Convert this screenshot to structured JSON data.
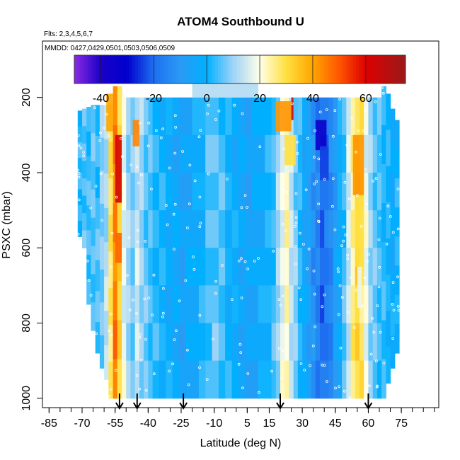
{
  "chart_data": {
    "type": "heatmap",
    "title": "ATOM4 Southbound U",
    "flights_note": "Flts: 2,3,4,5,6,7",
    "dates_note": "MMDD: 0427,0429,0501,0503,0506,0509",
    "xlabel": "Latitude (deg N)",
    "ylabel": "PSXC (mbar)",
    "xlim": [
      -88,
      92
    ],
    "ylim": [
      1025,
      50
    ],
    "x_ticks": [
      "-85",
      "-70",
      "-55",
      "-40",
      "-25",
      "-10",
      "5",
      "15",
      "30",
      "45",
      "60",
      "75"
    ],
    "x_tick_values": [
      -85,
      -70,
      -55,
      -40,
      -25,
      -10,
      5,
      15,
      30,
      45,
      60,
      75
    ],
    "y_ticks": [
      "200",
      "400",
      "600",
      "800",
      "1000"
    ],
    "y_tick_values": [
      200,
      400,
      600,
      800,
      1000
    ],
    "colorbar": {
      "range": [
        -50,
        75
      ],
      "ticks": [
        "-40",
        "-20",
        "0",
        "20",
        "40",
        "60"
      ],
      "tick_values": [
        -40,
        -20,
        0,
        20,
        40,
        60
      ],
      "stops": [
        {
          "v": -50,
          "color": "#8a2be2"
        },
        {
          "v": -40,
          "color": "#1a00c8"
        },
        {
          "v": -30,
          "color": "#0000cd"
        },
        {
          "v": -20,
          "color": "#1e6ff0"
        },
        {
          "v": -10,
          "color": "#2a9af5"
        },
        {
          "v": 0,
          "color": "#00b0ff"
        },
        {
          "v": 10,
          "color": "#9fd3f7"
        },
        {
          "v": 20,
          "color": "#ffffe8"
        },
        {
          "v": 30,
          "color": "#ffe040"
        },
        {
          "v": 40,
          "color": "#ffa500"
        },
        {
          "v": 50,
          "color": "#ff5500"
        },
        {
          "v": 60,
          "color": "#dd0000"
        },
        {
          "v": 75,
          "color": "#9a1a1a"
        }
      ]
    },
    "profile_arrows_lat": [
      -53,
      -45,
      -24,
      20,
      60
    ],
    "latitude_columns": [
      {
        "lat": -72,
        "top": 235,
        "bottom": 570,
        "u": 2
      },
      {
        "lat": -70,
        "top": 230,
        "bottom": 600,
        "u": 5
      },
      {
        "lat": -68,
        "top": 225,
        "bottom": 750,
        "u": 3
      },
      {
        "lat": -66,
        "top": 220,
        "bottom": 820,
        "u": 6
      },
      {
        "lat": -64,
        "top": 220,
        "bottom": 880,
        "u": 4
      },
      {
        "lat": -62,
        "top": 220,
        "bottom": 920,
        "u": 8
      },
      {
        "lat": -60,
        "top": 220,
        "bottom": 950,
        "u": 12
      },
      {
        "lat": -58,
        "top": 220,
        "bottom": 1000,
        "u": 28
      },
      {
        "lat": -56,
        "top": 170,
        "bottom": 1000,
        "u": 45
      },
      {
        "lat": -54,
        "top": 170,
        "bottom": 1000,
        "u": 32
      },
      {
        "lat": -52,
        "top": 200,
        "bottom": 1000,
        "u": 18
      },
      {
        "lat": -50,
        "top": 200,
        "bottom": 1000,
        "u": 10
      },
      {
        "lat": -48,
        "top": 200,
        "bottom": 1000,
        "u": 8
      },
      {
        "lat": -46,
        "top": 200,
        "bottom": 1000,
        "u": 14
      },
      {
        "lat": -44,
        "top": 200,
        "bottom": 1000,
        "u": 10
      },
      {
        "lat": -42,
        "top": 200,
        "bottom": 1000,
        "u": 6
      },
      {
        "lat": -40,
        "top": 200,
        "bottom": 1000,
        "u": 4
      },
      {
        "lat": -38,
        "top": 200,
        "bottom": 1000,
        "u": 2
      },
      {
        "lat": -35,
        "top": 200,
        "bottom": 1000,
        "u": 0
      },
      {
        "lat": -32,
        "top": 200,
        "bottom": 1000,
        "u": -2
      },
      {
        "lat": -29,
        "top": 200,
        "bottom": 1000,
        "u": -4
      },
      {
        "lat": -26,
        "top": 200,
        "bottom": 1000,
        "u": -6
      },
      {
        "lat": -23,
        "top": 200,
        "bottom": 1000,
        "u": -4
      },
      {
        "lat": -20,
        "top": 200,
        "bottom": 1000,
        "u": -2
      },
      {
        "lat": -17,
        "top": 200,
        "bottom": 1000,
        "u": 0
      },
      {
        "lat": -14,
        "top": 200,
        "bottom": 1000,
        "u": 4
      },
      {
        "lat": -11,
        "top": 200,
        "bottom": 1000,
        "u": 6
      },
      {
        "lat": -8,
        "top": 200,
        "bottom": 1000,
        "u": 4
      },
      {
        "lat": -5,
        "top": 200,
        "bottom": 1000,
        "u": 0
      },
      {
        "lat": -2,
        "top": 200,
        "bottom": 1000,
        "u": -2
      },
      {
        "lat": 1,
        "top": 200,
        "bottom": 1000,
        "u": -4
      },
      {
        "lat": 4,
        "top": 200,
        "bottom": 1000,
        "u": -6
      },
      {
        "lat": 7,
        "top": 200,
        "bottom": 1000,
        "u": -4
      },
      {
        "lat": 10,
        "top": 200,
        "bottom": 1000,
        "u": -2
      },
      {
        "lat": 13,
        "top": 200,
        "bottom": 1000,
        "u": 0
      },
      {
        "lat": 16,
        "top": 200,
        "bottom": 1000,
        "u": 4
      },
      {
        "lat": 18,
        "top": 200,
        "bottom": 1000,
        "u": 10
      },
      {
        "lat": 20,
        "top": 200,
        "bottom": 1000,
        "u": 18
      },
      {
        "lat": 22,
        "top": 200,
        "bottom": 1000,
        "u": 22
      },
      {
        "lat": 24,
        "top": 200,
        "bottom": 1000,
        "u": 14
      },
      {
        "lat": 26,
        "top": 200,
        "bottom": 1000,
        "u": 8
      },
      {
        "lat": 28,
        "top": 200,
        "bottom": 1000,
        "u": 2
      },
      {
        "lat": 30,
        "top": 200,
        "bottom": 1000,
        "u": -4
      },
      {
        "lat": 32,
        "top": 200,
        "bottom": 1000,
        "u": -8
      },
      {
        "lat": 34,
        "top": 200,
        "bottom": 1000,
        "u": -12
      },
      {
        "lat": 36,
        "top": 200,
        "bottom": 1000,
        "u": -16
      },
      {
        "lat": 38,
        "top": 200,
        "bottom": 1000,
        "u": -20
      },
      {
        "lat": 40,
        "top": 200,
        "bottom": 1000,
        "u": -18
      },
      {
        "lat": 42,
        "top": 200,
        "bottom": 1000,
        "u": -14
      },
      {
        "lat": 44,
        "top": 200,
        "bottom": 1000,
        "u": -8
      },
      {
        "lat": 46,
        "top": 200,
        "bottom": 1000,
        "u": -2
      },
      {
        "lat": 48,
        "top": 200,
        "bottom": 1000,
        "u": 4
      },
      {
        "lat": 50,
        "top": 200,
        "bottom": 1000,
        "u": 14
      },
      {
        "lat": 52,
        "top": 200,
        "bottom": 1000,
        "u": 26
      },
      {
        "lat": 54,
        "top": 200,
        "bottom": 1000,
        "u": 32
      },
      {
        "lat": 56,
        "top": 200,
        "bottom": 1000,
        "u": 28
      },
      {
        "lat": 58,
        "top": 200,
        "bottom": 1000,
        "u": 18
      },
      {
        "lat": 60,
        "top": 200,
        "bottom": 1000,
        "u": 10
      },
      {
        "lat": 62,
        "top": 200,
        "bottom": 1000,
        "u": 6
      },
      {
        "lat": 64,
        "top": 200,
        "bottom": 1000,
        "u": 4
      },
      {
        "lat": 66,
        "top": 170,
        "bottom": 1000,
        "u": 2
      },
      {
        "lat": 68,
        "top": 190,
        "bottom": 960,
        "u": 0
      },
      {
        "lat": 70,
        "top": 230,
        "bottom": 920,
        "u": -2
      },
      {
        "lat": 72,
        "top": 260,
        "bottom": 880,
        "u": 0
      }
    ],
    "local_features": [
      {
        "lat": [
          -55,
          -52
        ],
        "p": [
          300,
          480
        ],
        "u": 62
      },
      {
        "lat": [
          -55,
          -52
        ],
        "p": [
          560,
          640
        ],
        "u": 48
      },
      {
        "lat": [
          -59,
          -56
        ],
        "p": [
          190,
          290
        ],
        "u": 40
      },
      {
        "lat": [
          -47,
          -44
        ],
        "p": [
          260,
          330
        ],
        "u": 44
      },
      {
        "lat": [
          18,
          25
        ],
        "p": [
          210,
          290
        ],
        "u": 42
      },
      {
        "lat": [
          22,
          27
        ],
        "p": [
          300,
          380
        ],
        "u": 30
      },
      {
        "lat": [
          25,
          26
        ],
        "p": [
          200,
          260
        ],
        "u": 65
      },
      {
        "lat": [
          36,
          41
        ],
        "p": [
          260,
          340
        ],
        "u": -34
      },
      {
        "lat": [
          38,
          42
        ],
        "p": [
          330,
          420
        ],
        "u": -24
      },
      {
        "lat": [
          53,
          58
        ],
        "p": [
          300,
          460
        ],
        "u": 42
      },
      {
        "lat": [
          54,
          58
        ],
        "p": [
          460,
          650
        ],
        "u": 30
      },
      {
        "lat": [
          55,
          57
        ],
        "p": [
          650,
          760
        ],
        "u": 18
      },
      {
        "lat": [
          -20,
          10
        ],
        "p": [
          160,
          200
        ],
        "u": 12
      }
    ]
  }
}
